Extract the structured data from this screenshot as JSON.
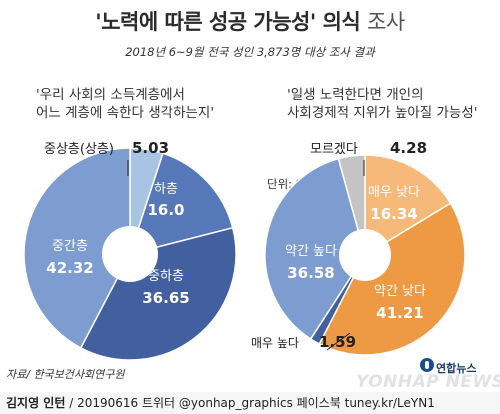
{
  "title_main": "'노력에 따른 성공 가능성' 의식",
  "title_suffix": "조사",
  "subtitle": "2018년 6~9월 전국 성인 3,873명 대상 조사 결과",
  "unit_label": "단위: %",
  "source": "자료/ 한국보건사회연구원",
  "credit_author": "김지영 인턴",
  "credit_rest": " / 20190616 트위터 @yonhap_graphics  페이스북 tuney.kr/LeYN1",
  "logo_ko": "연합뉴스",
  "logo_en": "YONHAP NEWS",
  "colors": {
    "light_blue": "#a9c4e3",
    "mid_blue": "#7d9dd0",
    "blue": "#5677b8",
    "dark_blue": "#42609f",
    "light_orange": "#f6b97a",
    "orange": "#ee9a45",
    "light_gray": "#c4c4c4",
    "bg_gray": "#f6f6f6",
    "white": "#ffffff"
  },
  "chart_data": [
    {
      "type": "pie",
      "title": "'우리 사회의 소득계층에서\n어느 계층에 속한다 생각하는지'",
      "question_lines": [
        "'우리 사회의 소득계층에서",
        "어느 계층에 속한다 생각하는지'"
      ],
      "slices": [
        {
          "label": "중상층(상층)",
          "value": 5.03,
          "color": "light_blue",
          "label_position": "outside"
        },
        {
          "label": "하층",
          "value": 16.0,
          "value_text": "16.0",
          "color": "blue",
          "label_position": "inside"
        },
        {
          "label": "중하층",
          "value": 36.65,
          "color": "dark_blue",
          "label_position": "inside"
        },
        {
          "label": "중간층",
          "value": 42.32,
          "color": "mid_blue",
          "label_position": "inside"
        }
      ]
    },
    {
      "type": "pie",
      "title": "'일생 노력한다면 개인의\n사회경제적 지위가 높아질 가능성'",
      "question_lines": [
        "'일생 노력한다면 개인의",
        "사회경제적 지위가 높아질 가능성'"
      ],
      "slices": [
        {
          "label": "매우 낮다",
          "value": 16.34,
          "color": "light_orange",
          "label_position": "inside"
        },
        {
          "label": "약간 낮다",
          "value": 41.21,
          "color": "orange",
          "label_position": "inside"
        },
        {
          "label": "매우 높다",
          "value": 1.59,
          "color": "dark_blue",
          "label_position": "outside"
        },
        {
          "label": "약간 높다",
          "value": 36.58,
          "color": "mid_blue",
          "label_position": "inside"
        },
        {
          "label": "모르겠다",
          "value": 4.28,
          "color": "light_gray",
          "label_position": "outside"
        }
      ]
    }
  ]
}
